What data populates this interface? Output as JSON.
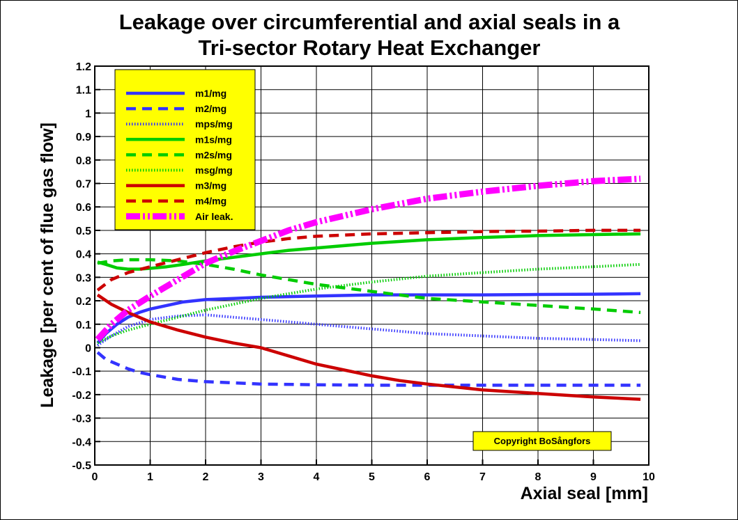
{
  "chart_data": {
    "type": "line",
    "title": [
      "Leakage over circumferential and axial seals in a",
      "Tri-sector Rotary Heat Exchanger"
    ],
    "xlabel": "Axial seal [mm]",
    "ylabel": "Leakage [per cent of flue gas flow]",
    "xlim": [
      0,
      10
    ],
    "ylim": [
      -0.5,
      1.2
    ],
    "x_ticks": [
      0,
      1,
      2,
      3,
      4,
      5,
      6,
      7,
      8,
      9,
      10
    ],
    "x_tick_labels": [
      "0",
      "1",
      "2",
      "3",
      "4",
      "5",
      "6",
      "7",
      "8",
      "9",
      "10"
    ],
    "y_ticks": [
      -0.5,
      -0.4,
      -0.3,
      -0.2,
      -0.1,
      0,
      0.1,
      0.2,
      0.3,
      0.4,
      0.5,
      0.6,
      0.7,
      0.8,
      0.9,
      1,
      1.1,
      1.2
    ],
    "y_tick_labels": [
      "-0.5",
      "-0.4",
      "-0.3",
      "-0.2",
      "-0.1",
      "0",
      "0.1",
      "0.2",
      "0.3",
      "0.4",
      "0.5",
      "0.6",
      "0.7",
      "0.8",
      "0.9",
      "1",
      "1.1",
      "1.2"
    ],
    "grid": true,
    "legend_position": "top-left",
    "legend_background": "#ffff00",
    "copyright": "Copyright BoSångfors",
    "series": [
      {
        "name": "m1/mg",
        "color": "#3333ff",
        "style": "solid",
        "x": [
          0.05,
          0.2,
          0.4,
          0.6,
          0.8,
          1,
          1.3,
          1.6,
          2,
          2.5,
          3,
          4,
          5,
          6,
          7,
          8,
          9,
          9.85
        ],
        "y": [
          0.02,
          0.06,
          0.1,
          0.13,
          0.15,
          0.165,
          0.18,
          0.195,
          0.205,
          0.21,
          0.215,
          0.22,
          0.225,
          0.225,
          0.225,
          0.227,
          0.228,
          0.23
        ]
      },
      {
        "name": "m2/mg",
        "color": "#3333ff",
        "style": "dash",
        "x": [
          0.05,
          0.2,
          0.4,
          0.6,
          0.8,
          1,
          1.5,
          2,
          2.5,
          3,
          4,
          5,
          6,
          7,
          8,
          9,
          9.85
        ],
        "y": [
          -0.02,
          -0.05,
          -0.07,
          -0.09,
          -0.105,
          -0.115,
          -0.135,
          -0.145,
          -0.15,
          -0.155,
          -0.158,
          -0.16,
          -0.16,
          -0.16,
          -0.16,
          -0.16,
          -0.16
        ]
      },
      {
        "name": "mps/mg",
        "color": "#3333ff",
        "style": "dot",
        "x": [
          0.05,
          0.3,
          0.6,
          1,
          1.5,
          2,
          2.5,
          3,
          4,
          5,
          6,
          7,
          8,
          9,
          9.85
        ],
        "y": [
          0.01,
          0.05,
          0.09,
          0.12,
          0.135,
          0.14,
          0.13,
          0.12,
          0.1,
          0.08,
          0.06,
          0.05,
          0.04,
          0.035,
          0.03
        ]
      },
      {
        "name": "m1s/mg",
        "color": "#00cc00",
        "style": "solid",
        "x": [
          0.05,
          0.2,
          0.4,
          0.6,
          0.8,
          1,
          1.3,
          1.6,
          2,
          2.5,
          3,
          3.5,
          4,
          5,
          6,
          7,
          8,
          9,
          9.85
        ],
        "y": [
          0.365,
          0.355,
          0.34,
          0.335,
          0.335,
          0.338,
          0.345,
          0.355,
          0.37,
          0.385,
          0.4,
          0.415,
          0.425,
          0.445,
          0.46,
          0.47,
          0.478,
          0.482,
          0.485
        ]
      },
      {
        "name": "m2s/mg",
        "color": "#00cc00",
        "style": "dash",
        "x": [
          0.05,
          0.3,
          0.6,
          1,
          1.5,
          2,
          2.5,
          3,
          3.5,
          4,
          5,
          6,
          7,
          8,
          9,
          9.85
        ],
        "y": [
          0.36,
          0.37,
          0.375,
          0.375,
          0.37,
          0.355,
          0.335,
          0.31,
          0.29,
          0.27,
          0.24,
          0.21,
          0.195,
          0.18,
          0.165,
          0.15
        ]
      },
      {
        "name": "msg/mg",
        "color": "#00cc00",
        "style": "dot",
        "x": [
          0.05,
          0.3,
          0.6,
          1,
          1.5,
          2,
          2.5,
          3,
          3.5,
          4,
          5,
          6,
          7,
          8,
          9,
          9.85
        ],
        "y": [
          0.02,
          0.05,
          0.075,
          0.1,
          0.13,
          0.16,
          0.185,
          0.21,
          0.23,
          0.25,
          0.28,
          0.305,
          0.32,
          0.335,
          0.345,
          0.355
        ]
      },
      {
        "name": "m3/mg",
        "color": "#cc0000",
        "style": "solid",
        "x": [
          0.05,
          0.3,
          0.6,
          1,
          1.5,
          2,
          2.5,
          3,
          3.5,
          4,
          4.5,
          5,
          5.5,
          6,
          7,
          8,
          9,
          9.85
        ],
        "y": [
          0.225,
          0.185,
          0.15,
          0.11,
          0.075,
          0.045,
          0.02,
          0.0,
          -0.035,
          -0.07,
          -0.095,
          -0.12,
          -0.14,
          -0.155,
          -0.18,
          -0.195,
          -0.21,
          -0.22
        ]
      },
      {
        "name": "m4/mg",
        "color": "#cc0000",
        "style": "dash",
        "x": [
          0.05,
          0.3,
          0.6,
          1,
          1.5,
          2,
          2.5,
          3,
          3.5,
          4,
          5,
          6,
          7,
          8,
          9,
          9.85
        ],
        "y": [
          0.245,
          0.29,
          0.32,
          0.345,
          0.375,
          0.405,
          0.43,
          0.45,
          0.465,
          0.475,
          0.485,
          0.49,
          0.495,
          0.497,
          0.5,
          0.5
        ]
      },
      {
        "name": "Air leak.",
        "color": "#ff00ff",
        "style": "dashdot",
        "x": [
          0.05,
          0.3,
          0.6,
          1,
          1.5,
          2,
          2.5,
          3,
          3.5,
          4,
          5,
          6,
          7,
          8,
          9,
          9.85
        ],
        "y": [
          0.035,
          0.1,
          0.16,
          0.22,
          0.29,
          0.36,
          0.41,
          0.455,
          0.5,
          0.535,
          0.59,
          0.635,
          0.665,
          0.69,
          0.71,
          0.72
        ]
      }
    ]
  }
}
